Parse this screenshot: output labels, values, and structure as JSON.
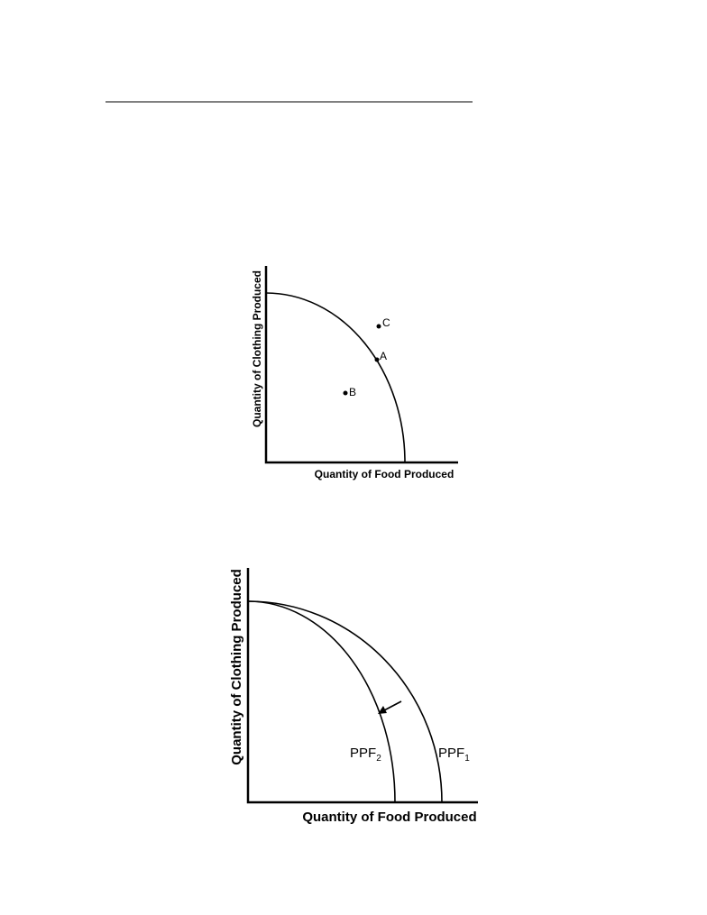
{
  "figure1": {
    "x_axis_label": "Quantity of Food Produced",
    "y_axis_label": "Quantity of Clothing Produced",
    "points": [
      {
        "label": "A"
      },
      {
        "label": "B"
      },
      {
        "label": "C"
      }
    ]
  },
  "figure2": {
    "x_axis_label": "Quantity of Food Produced",
    "y_axis_label": "Quantity of Clothing Produced",
    "curves": [
      {
        "label": "PPF",
        "subscript": "1"
      },
      {
        "label": "PPF",
        "subscript": "2"
      }
    ]
  }
}
